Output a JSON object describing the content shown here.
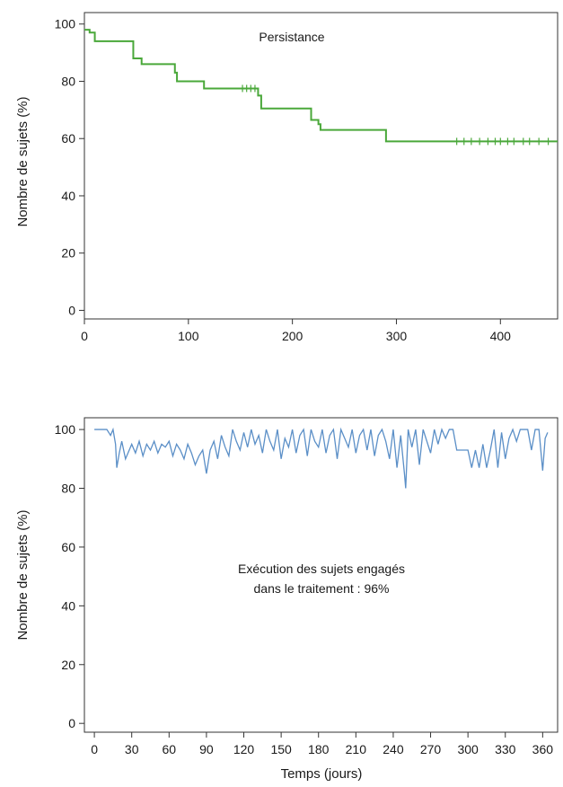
{
  "chart_data": [
    {
      "type": "line",
      "title": "",
      "annotation": "Persistance",
      "xlabel": "",
      "ylabel": "Nombre de sujets (%)",
      "xlim": [
        0,
        455
      ],
      "ylim": [
        -3,
        104
      ],
      "xticks": [
        0,
        100,
        200,
        300,
        400
      ],
      "yticks": [
        0,
        20,
        40,
        60,
        80,
        100
      ],
      "color": "#4aa83a",
      "step": true,
      "series": [
        {
          "x": [
            0,
            5,
            10,
            43,
            47,
            55,
            87,
            89,
            115,
            165,
            167,
            170,
            218,
            225,
            227,
            290,
            455
          ],
          "y": [
            98,
            97,
            94,
            94,
            88,
            86,
            83,
            80,
            77.5,
            77.5,
            75,
            70.5,
            66.5,
            65,
            63,
            59,
            59
          ]
        }
      ],
      "censored": {
        "x": [
          152,
          156,
          160,
          164,
          358,
          365,
          372,
          380,
          388,
          395,
          400,
          407,
          413,
          422,
          428,
          437,
          446
        ],
        "y": [
          77.5,
          77.5,
          77.5,
          77.5,
          59,
          59,
          59,
          59,
          59,
          59,
          59,
          59,
          59,
          59,
          59,
          59,
          59
        ]
      }
    },
    {
      "type": "line",
      "title": "",
      "annotation": [
        "Exécution des sujets engagés",
        "dans le traitement : 96%"
      ],
      "xlabel": "Temps (jours)",
      "ylabel": "Nombre de sujets (%)",
      "xlim": [
        -8,
        372
      ],
      "ylim": [
        -3,
        104
      ],
      "xticks": [
        0,
        30,
        60,
        90,
        120,
        150,
        180,
        210,
        240,
        270,
        300,
        330,
        360
      ],
      "yticks": [
        0,
        20,
        40,
        60,
        80,
        100
      ],
      "color": "#5b8fc7",
      "series": [
        {
          "x": [
            0,
            10,
            13,
            15,
            17,
            18,
            20,
            22,
            25,
            28,
            30,
            33,
            36,
            39,
            42,
            45,
            48,
            51,
            54,
            57,
            60,
            63,
            66,
            69,
            72,
            75,
            78,
            81,
            84,
            87,
            90,
            93,
            96,
            99,
            102,
            105,
            108,
            111,
            114,
            117,
            120,
            123,
            126,
            129,
            132,
            135,
            138,
            141,
            144,
            147,
            150,
            153,
            156,
            159,
            162,
            165,
            168,
            171,
            174,
            177,
            180,
            183,
            186,
            189,
            192,
            195,
            198,
            201,
            204,
            207,
            210,
            213,
            216,
            219,
            222,
            225,
            228,
            231,
            234,
            237,
            240,
            243,
            246,
            249,
            250,
            252,
            255,
            258,
            261,
            264,
            267,
            270,
            273,
            276,
            279,
            282,
            285,
            288,
            291,
            294,
            297,
            300,
            303,
            306,
            309,
            312,
            315,
            318,
            321,
            324,
            327,
            330,
            333,
            336,
            339,
            342,
            345,
            348,
            351,
            354,
            357,
            360,
            362,
            364
          ],
          "y": [
            100,
            100,
            98,
            100,
            95,
            87,
            92,
            96,
            90,
            93,
            95,
            92,
            96,
            91,
            95,
            93,
            96,
            92,
            95,
            94,
            96,
            91,
            95,
            93,
            90,
            95,
            92,
            88,
            91,
            93,
            85,
            93,
            96,
            90,
            98,
            94,
            91,
            100,
            96,
            93,
            99,
            94,
            100,
            95,
            98,
            92,
            100,
            96,
            93,
            100,
            90,
            97,
            94,
            100,
            92,
            98,
            100,
            91,
            100,
            96,
            94,
            100,
            92,
            98,
            100,
            90,
            100,
            97,
            94,
            100,
            92,
            98,
            100,
            93,
            100,
            91,
            98,
            100,
            96,
            90,
            100,
            87,
            98,
            85,
            80,
            100,
            94,
            100,
            88,
            100,
            96,
            92,
            100,
            95,
            100,
            97,
            100,
            100,
            93,
            93,
            93,
            93,
            87,
            93,
            87,
            95,
            87,
            93,
            100,
            87,
            99,
            90,
            97,
            100,
            96,
            100,
            100,
            100,
            93,
            100,
            100,
            86,
            97,
            99
          ]
        }
      ]
    }
  ]
}
